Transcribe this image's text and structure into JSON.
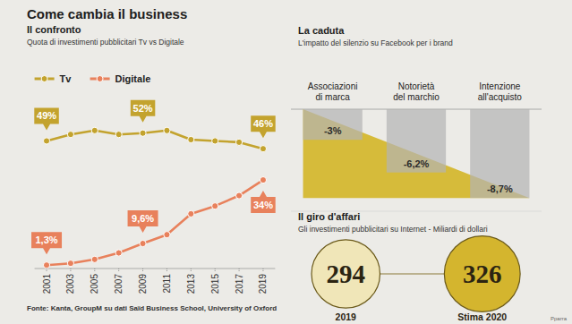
{
  "title": "Come cambia il business",
  "source": "Fonte: Kanta, GroupM su dati Saïd Business School, University of Oxford",
  "credit": "Pparra",
  "chart_data": [
    {
      "type": "line",
      "title": "Il confronto",
      "subtitle": "Quota di investimenti pubblicitari Tv vs Digitale",
      "x": [
        2001,
        2003,
        2005,
        2007,
        2009,
        2011,
        2013,
        2015,
        2017,
        2019
      ],
      "xlim": [
        2000,
        2020
      ],
      "xticks": [
        2001,
        2003,
        2005,
        2007,
        2009,
        2011,
        2013,
        2015,
        2017,
        2019
      ],
      "ylim": [
        0,
        55
      ],
      "tick_labels": "x",
      "grid": false,
      "legend": "top-left",
      "data_labels": true,
      "marker": "circle",
      "series": [
        {
          "name": "Tv",
          "color": "#c3a32e",
          "values": [
            49,
            51.5,
            53,
            51.5,
            52,
            53,
            49.5,
            49,
            48.5,
            46
          ],
          "value_labels": [
            "49%",
            null,
            null,
            null,
            "52%",
            null,
            null,
            null,
            null,
            "46%"
          ]
        },
        {
          "name": "Digitale",
          "color": "#e8815c",
          "values": [
            1.3,
            2,
            3.5,
            6,
            9.6,
            13,
            21,
            24,
            28,
            34
          ],
          "value_labels": [
            "1,3%",
            null,
            null,
            null,
            "9,6%",
            null,
            null,
            null,
            null,
            "34%"
          ]
        }
      ]
    },
    {
      "type": "bar",
      "title": "La caduta",
      "subtitle": "L'impatto del silenzio su Facebook per i brand",
      "categories": [
        "Associazioni di marca",
        "Notorietà del marchio",
        "Intenzione all'acquisto"
      ],
      "values": [
        -3,
        -6.2,
        -8.7
      ],
      "value_labels": [
        "-3%",
        "-6,2%",
        "-8,7%"
      ],
      "ylim": [
        -10,
        0
      ],
      "color": "#b4b4b4",
      "tick_labels": false,
      "grid": false,
      "data_labels": true
    },
    {
      "type": "bubble",
      "title": "Il giro d'affari",
      "subtitle": "Gli investimenti pubblicitari su Internet - Miliardi di dollari",
      "categories": [
        "2019",
        "Stima 2020"
      ],
      "values": [
        294,
        326
      ],
      "colors": [
        "#f0e6b8",
        "#d4b52e"
      ],
      "data_labels": true
    }
  ]
}
